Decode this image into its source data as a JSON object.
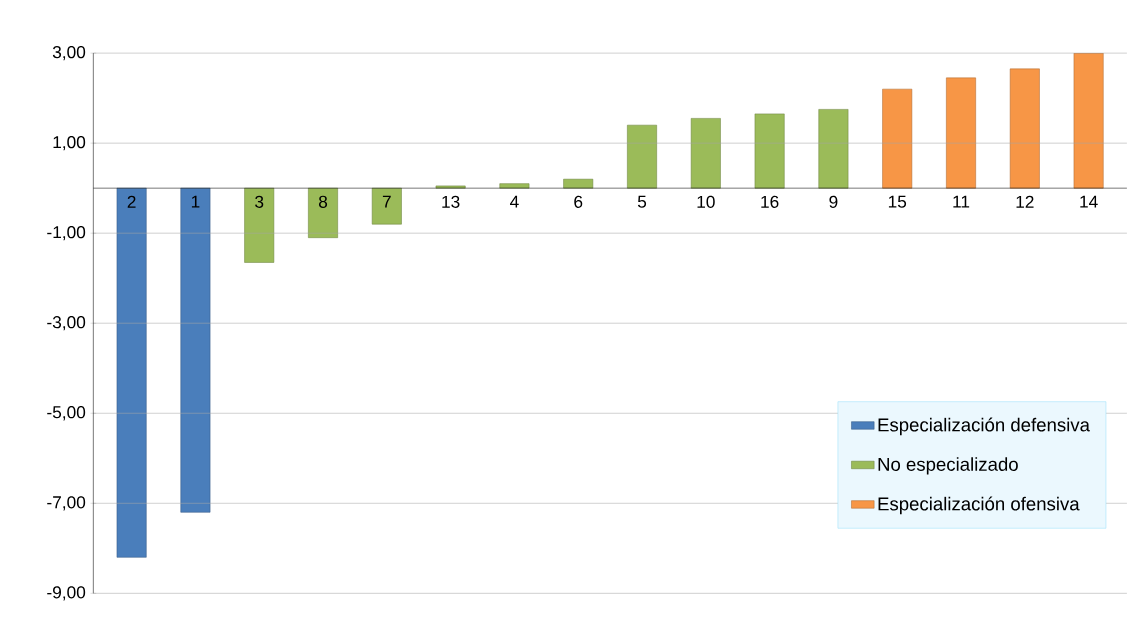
{
  "chart_data": {
    "type": "bar",
    "categories": [
      "2",
      "1",
      "3",
      "8",
      "7",
      "13",
      "4",
      "6",
      "5",
      "10",
      "16",
      "9",
      "15",
      "11",
      "12",
      "14"
    ],
    "series": [
      {
        "name": "Especialización defensiva",
        "color": "#4a7ebb",
        "values": [
          -8.2,
          -7.2,
          null,
          null,
          null,
          null,
          null,
          null,
          null,
          null,
          null,
          null,
          null,
          null,
          null,
          null
        ]
      },
      {
        "name": "No especializado",
        "color": "#9bbb59",
        "values": [
          null,
          null,
          -1.65,
          -1.1,
          -0.8,
          0.05,
          0.1,
          0.2,
          1.4,
          1.55,
          1.65,
          1.75,
          null,
          null,
          null,
          null
        ]
      },
      {
        "name": "Especialización ofensiva",
        "color": "#f79646",
        "values": [
          null,
          null,
          null,
          null,
          null,
          null,
          null,
          null,
          null,
          null,
          null,
          null,
          2.2,
          2.45,
          2.65,
          3.0
        ]
      }
    ],
    "ylim": [
      -9,
      3
    ],
    "yticks": [
      {
        "value": -9,
        "label": "-9,00"
      },
      {
        "value": -7,
        "label": "-7,00"
      },
      {
        "value": -5,
        "label": "-5,00"
      },
      {
        "value": -3,
        "label": "-3,00"
      },
      {
        "value": -1,
        "label": "-1,00"
      },
      {
        "value": 1,
        "label": "1,00"
      },
      {
        "value": 3,
        "label": "3,00"
      }
    ],
    "grid": "y",
    "legend": "right"
  }
}
